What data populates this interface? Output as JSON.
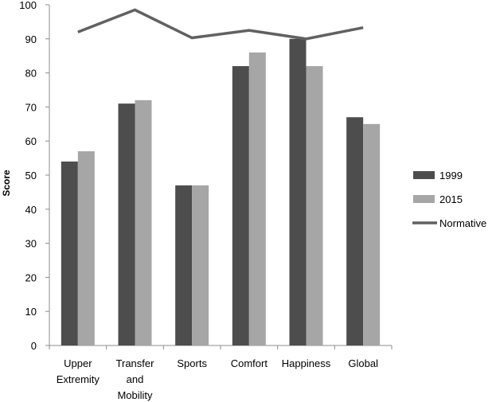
{
  "chart_data": {
    "type": "bar",
    "title": "",
    "xlabel": "",
    "ylabel": "Score",
    "ylim": [
      0,
      100
    ],
    "yticks": [
      0,
      10,
      20,
      30,
      40,
      50,
      60,
      70,
      80,
      90,
      100
    ],
    "categories": [
      [
        "Upper",
        "Extremity"
      ],
      [
        "Transfer",
        "and",
        "Mobility"
      ],
      [
        "Sports"
      ],
      [
        "Comfort"
      ],
      [
        "Happiness"
      ],
      [
        "Global"
      ]
    ],
    "series": [
      {
        "name": "1999",
        "type": "bar",
        "color": "#4d4d4d",
        "values": [
          54,
          71,
          47,
          82,
          90,
          67
        ]
      },
      {
        "name": "2015",
        "type": "bar",
        "color": "#a6a6a6",
        "values": [
          57,
          72,
          47,
          86,
          82,
          65
        ]
      },
      {
        "name": "Normative",
        "type": "line",
        "color": "#616161",
        "values": [
          92,
          98.5,
          90.3,
          92.5,
          90,
          93.3
        ]
      }
    ],
    "legend_position": "right",
    "grid": false
  }
}
